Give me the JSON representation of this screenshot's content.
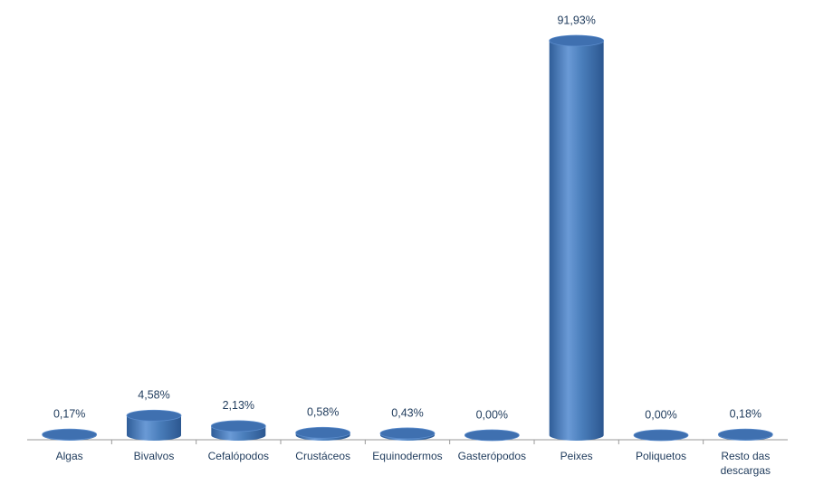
{
  "chart_data": {
    "type": "bar",
    "categories": [
      "Algas",
      "Bivalvos",
      "Cefalópodos",
      "Crustáceos",
      "Equinodermos",
      "Gasterópodos",
      "Peixes",
      "Poliquetos",
      "Resto das descargas"
    ],
    "values": [
      0.17,
      4.58,
      2.13,
      0.58,
      0.43,
      0.0,
      91.93,
      0.0,
      0.18
    ],
    "value_labels": [
      "0,17%",
      "4,58%",
      "2,13%",
      "0,58%",
      "0,43%",
      "0,00%",
      "91,93%",
      "0,00%",
      "0,18%"
    ],
    "color": "#4a7ebb"
  }
}
